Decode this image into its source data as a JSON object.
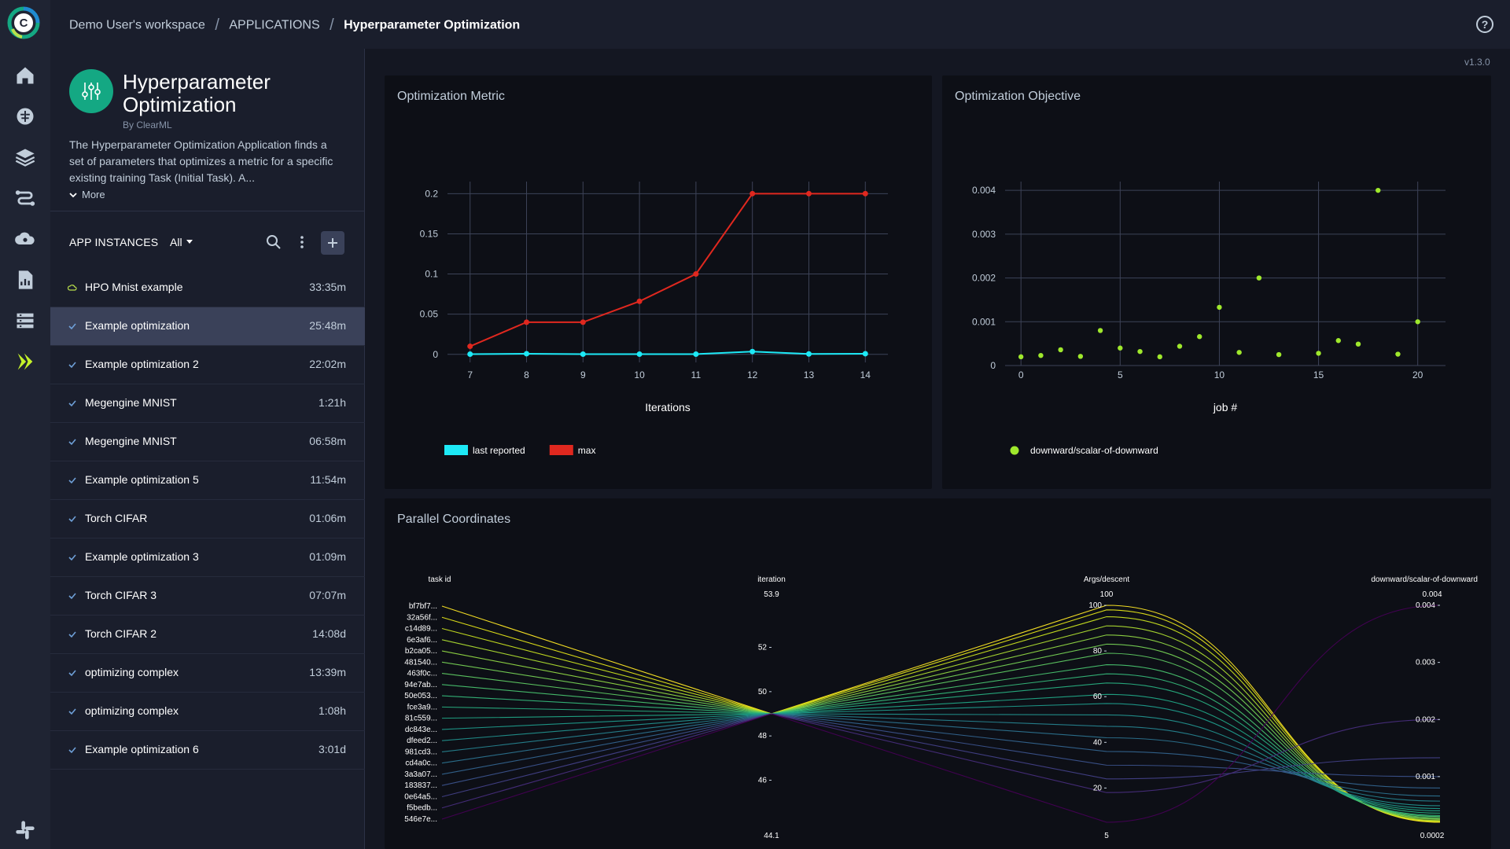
{
  "topbar": {
    "breadcrumbs": [
      "Demo User's workspace",
      "APPLICATIONS",
      "Hyperparameter Optimization"
    ]
  },
  "version": "v1.3.0",
  "app": {
    "title": "Hyperparameter Optimization",
    "author": "By ClearML",
    "description": "The Hyperparameter Optimization Application finds a set of parameters that optimizes a metric  for a specific existing  training Task (Initial Task). A...",
    "more_label": "More"
  },
  "instances": {
    "header": "APP INSTANCES",
    "filter": "All",
    "items": [
      {
        "name": "HPO Mnist example",
        "time": "33:35m",
        "status": "running"
      },
      {
        "name": "Example optimization",
        "time": "25:48m",
        "status": "completed"
      },
      {
        "name": "Example optimization 2",
        "time": "22:02m",
        "status": "completed"
      },
      {
        "name": "Megengine MNIST",
        "time": "1:21h",
        "status": "completed"
      },
      {
        "name": "Megengine MNIST",
        "time": "06:58m",
        "status": "completed"
      },
      {
        "name": "Example optimization 5",
        "time": "11:54m",
        "status": "completed"
      },
      {
        "name": "Torch CIFAR",
        "time": "01:06m",
        "status": "completed"
      },
      {
        "name": "Example optimization 3",
        "time": "01:09m",
        "status": "completed"
      },
      {
        "name": "Torch CIFAR 3",
        "time": "07:07m",
        "status": "completed"
      },
      {
        "name": "Torch CIFAR 2",
        "time": "14:08d",
        "status": "completed"
      },
      {
        "name": "optimizing complex",
        "time": "13:39m",
        "status": "completed"
      },
      {
        "name": "optimizing complex",
        "time": "1:08h",
        "status": "completed"
      },
      {
        "name": "Example optimization 6",
        "time": "3:01d",
        "status": "completed"
      }
    ]
  },
  "colors": {
    "accent_green": "#14a883",
    "last_reported": "#1de9f6",
    "max": "#e0281f",
    "scatter": "#9fe82c",
    "selected_row": "#3a4159"
  },
  "chart_data": [
    {
      "type": "line",
      "title": "Optimization Metric",
      "xlabel": "Iterations",
      "ylabel": "",
      "x": [
        7,
        8,
        9,
        10,
        11,
        12,
        13,
        14
      ],
      "xlim": [
        6.6,
        14.4
      ],
      "ylim": [
        -0.01,
        0.215
      ],
      "xticks": [
        7,
        8,
        9,
        10,
        11,
        12,
        13,
        14
      ],
      "yticks": [
        0,
        0.05,
        0.1,
        0.15,
        0.2
      ],
      "series": [
        {
          "name": "last reported",
          "color": "#1de9f6",
          "values": [
            0.0003,
            0.0008,
            0.0003,
            0.0003,
            0.0003,
            0.0035,
            0.0005,
            0.0008
          ]
        },
        {
          "name": "max",
          "color": "#e0281f",
          "values": [
            0.01,
            0.04,
            0.04,
            0.066,
            0.1,
            0.2,
            0.2,
            0.2
          ]
        }
      ],
      "legend": "bottom-left"
    },
    {
      "type": "scatter",
      "title": "Optimization Objective",
      "xlabel": "job #",
      "ylabel": "",
      "xlim": [
        -0.8,
        21.4
      ],
      "ylim": [
        0,
        0.0042
      ],
      "xticks": [
        0,
        5,
        10,
        15,
        20
      ],
      "yticks": [
        0,
        0.001,
        0.002,
        0.003,
        0.004
      ],
      "series": [
        {
          "name": "downward/scalar-of-downward",
          "color": "#9fe82c",
          "x": [
            0,
            1,
            2,
            3,
            4,
            5,
            6,
            7,
            8,
            9,
            10,
            11,
            12,
            13,
            15,
            16,
            17,
            18,
            19,
            20
          ],
          "y": [
            0.0002,
            0.00023,
            0.00036,
            0.00021,
            0.0008,
            0.0004,
            0.00032,
            0.0002,
            0.00044,
            0.00066,
            0.00133,
            0.0003,
            0.002,
            0.00025,
            0.00028,
            0.00057,
            0.00049,
            0.004,
            0.00026,
            0.001
          ]
        }
      ],
      "legend": "bottom-left"
    },
    {
      "type": "parallel_coordinates",
      "title": "Parallel Coordinates",
      "dimensions": [
        {
          "label": "task id",
          "ticks": [
            "bf7bf7...",
            "32a56f...",
            "c14d89...",
            "6e3af6...",
            "b2ca05...",
            "481540...",
            "463f0c...",
            "94e7ab...",
            "50e053...",
            "fce3a9...",
            "81c559...",
            "dc843e...",
            "dfeed2...",
            "981cd3...",
            "cd4a0c...",
            "3a3a07...",
            "183837...",
            "0e64a5...",
            "f5bedb...",
            "546e7e..."
          ]
        },
        {
          "label": "iteration",
          "range": [
            44.1,
            53.9
          ],
          "range_labels": [
            "44.1",
            "53.9"
          ],
          "ticks": [
            46,
            48,
            50,
            52
          ]
        },
        {
          "label": "Args/descent",
          "range": [
            5,
            100
          ],
          "range_labels": [
            "5",
            "100"
          ],
          "ticks": [
            20,
            40,
            60,
            80,
            100
          ]
        },
        {
          "label": "downward/scalar-of-downward",
          "range": [
            0.0002,
            0.004
          ],
          "range_labels": [
            "0.0002",
            "0.004"
          ],
          "ticks": [
            0.001,
            0.002,
            0.003,
            0.004
          ]
        }
      ],
      "iteration_value": 49,
      "descent_values": [
        100,
        98,
        95,
        91,
        87,
        83,
        79,
        74,
        70,
        66,
        61,
        57,
        52,
        47,
        42,
        36,
        30,
        24,
        18,
        5
      ],
      "objective_values": [
        0.0002,
        0.00021,
        0.00022,
        0.00023,
        0.00025,
        0.00026,
        0.00028,
        0.0003,
        0.00032,
        0.00036,
        0.0004,
        0.00044,
        0.00049,
        0.00057,
        0.00066,
        0.0008,
        0.001,
        0.00133,
        0.002,
        0.004
      ]
    }
  ]
}
